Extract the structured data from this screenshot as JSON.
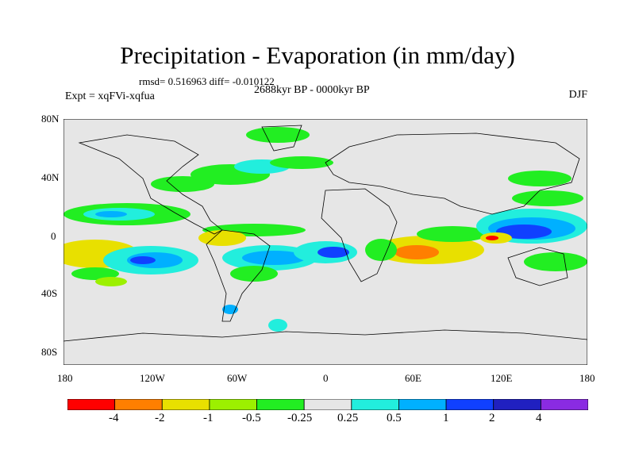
{
  "header": {
    "title": "Precipitation - Evaporation (in mm/day)",
    "stats": "rmsd= 0.516963 diff= -0.010122",
    "period": "2688kyr BP - 0000kyr BP",
    "experiment": "Expt = xqFVi-xqfua",
    "season": "DJF"
  },
  "axes": {
    "lat_labels": [
      "80N",
      "40N",
      "0",
      "40S",
      "80S"
    ],
    "lon_labels": [
      "180",
      "120W",
      "60W",
      "0",
      "60E",
      "120E",
      "180"
    ]
  },
  "colorbar": {
    "labels": [
      "-4",
      "-2",
      "-1",
      "-0.5",
      "-0.25",
      "0.25",
      "0.5",
      "1",
      "2",
      "4"
    ],
    "colors": [
      "#ff0000",
      "#ff7f00",
      "#e8e000",
      "#9cf000",
      "#22ee22",
      "#e6e6e6",
      "#22eedd",
      "#00b0ff",
      "#1040ff",
      "#2020c0",
      "#8a2be2"
    ]
  }
}
